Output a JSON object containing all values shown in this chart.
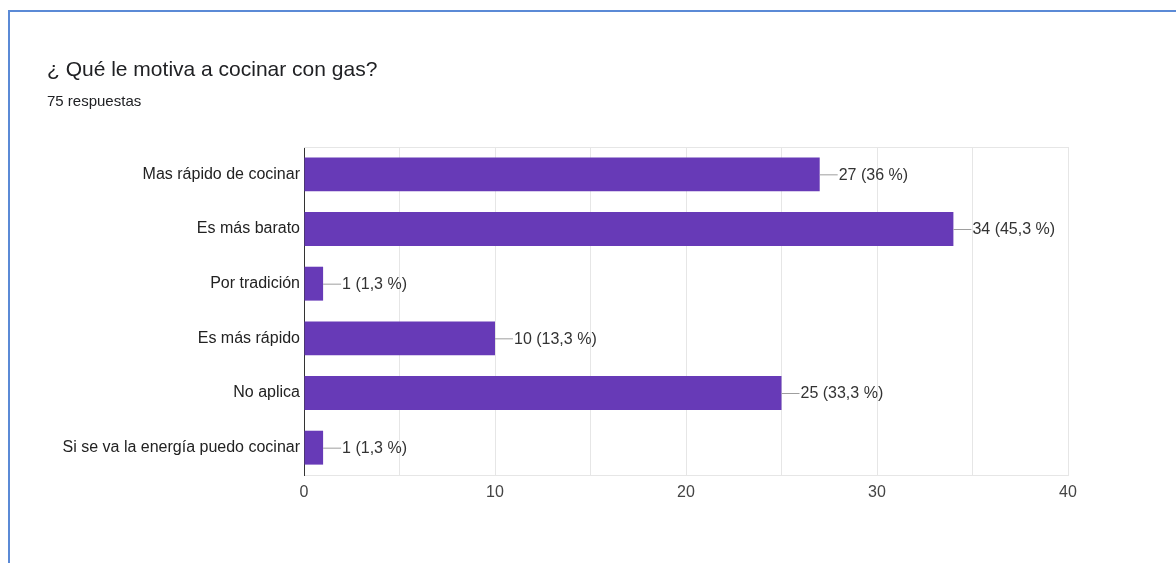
{
  "chart_data": {
    "type": "bar",
    "orientation": "horizontal",
    "title": "¿ Qué le motiva a cocinar con gas?",
    "subtitle": "75 respuestas",
    "categories": [
      "Mas rápido de cocinar",
      "Es más barato",
      "Por tradición",
      "Es más rápido",
      "No aplica",
      "Si se va la energía puedo cocinar"
    ],
    "values": [
      27,
      34,
      1,
      10,
      25,
      1
    ],
    "color": "#673ab7",
    "value_labels": [
      "27 (36 %)",
      "34 (45,3 %)",
      "1 (1,3 %)",
      "10 (13,3 %)",
      "25 (33,3 %)",
      "1 (1,3 %)"
    ],
    "xlim": [
      0,
      40
    ],
    "xticks": [
      0,
      {
        "value": 5,
        "label": null
      },
      10,
      {
        "value": 15,
        "label": null
      },
      20,
      {
        "value": 25,
        "label": null
      },
      30,
      {
        "value": 35,
        "label": null
      },
      40
    ],
    "grid": "x"
  }
}
